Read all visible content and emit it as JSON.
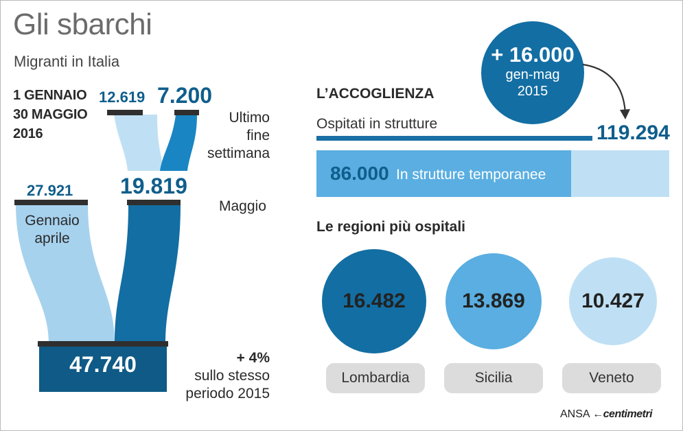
{
  "header": {
    "title": "Gli sbarchi",
    "subtitle": "Migranti in Italia"
  },
  "left": {
    "period_line1": "1 GENNAIO",
    "period_line2": "30 MAGGIO",
    "period_line3": "2016",
    "weekend_prev": "12.619",
    "weekend_value": "7.200",
    "weekend_label_1": "Ultimo",
    "weekend_label_2": "fine",
    "weekend_label_3": "settimana",
    "jan_apr_value": "27.921",
    "jan_apr_label_1": "Gennaio",
    "jan_apr_label_2": "aprile",
    "may_value": "19.819",
    "may_label": "Maggio",
    "total_value": "47.740",
    "change_value": "+ 4%",
    "change_label_1": "sullo stesso",
    "change_label_2": "periodo 2015"
  },
  "bubble": {
    "value": "+ 16.000",
    "line1": "gen-mag",
    "line2": "2015"
  },
  "accoglienza": {
    "title": "L’ACCOGLIENZA",
    "hosted_label": "Ospitati in strutture",
    "hosted_total": "119.294",
    "temporary_value": "86.000",
    "temporary_label": "In strutture temporanee",
    "temporary_fraction": 0.721
  },
  "regions": {
    "title": "Le regioni più ospitali",
    "items": [
      {
        "name": "Lombardia",
        "value": "16.482",
        "color": "#136ea3"
      },
      {
        "name": "Sicilia",
        "value": "13.869",
        "color": "#5aaee1"
      },
      {
        "name": "Veneto",
        "value": "10.427",
        "color": "#bfe0f4"
      }
    ]
  },
  "credit": {
    "agency": "ANSA",
    "brand": "centimetri"
  },
  "colors": {
    "dark_blue": "#136ea3",
    "mid_blue": "#5aaee1",
    "light_blue": "#bfe0f4",
    "text_blue": "#0f5e8c"
  }
}
